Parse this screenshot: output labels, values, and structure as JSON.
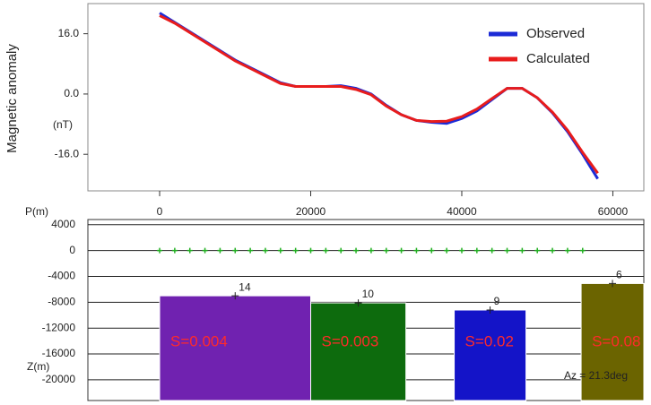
{
  "chart_data": [
    {
      "type": "line",
      "ylabel": "Magnetic anomaly",
      "unit_label": "(nT)",
      "xlim": [
        -9500,
        64100
      ],
      "xticks": [
        0,
        20000,
        40000,
        60000
      ],
      "ylim": [
        -25.7,
        24
      ],
      "yticks": [
        {
          "value": 16,
          "label": "16.0"
        },
        {
          "value": 0,
          "label": "0.0"
        },
        {
          "value": -16,
          "label": "-16.0"
        }
      ],
      "legend": "upper right",
      "x": [
        0,
        2000,
        4000,
        6000,
        8000,
        10000,
        12000,
        14000,
        16000,
        18000,
        20000,
        22000,
        24000,
        26000,
        28000,
        30000,
        32000,
        34000,
        36000,
        38000,
        40000,
        42000,
        44000,
        46000,
        48000,
        50000,
        52000,
        54000,
        56000,
        58000
      ],
      "series": [
        {
          "name": "Observed",
          "color": "#1c2bd6",
          "values": [
            21.5,
            19,
            16.5,
            14,
            11.5,
            9,
            7,
            5,
            3,
            2,
            2,
            2,
            2.2,
            1.5,
            0,
            -3,
            -5.5,
            -7,
            -7.5,
            -7.8,
            -6.5,
            -4.5,
            -1.5,
            1.5,
            1.5,
            -1,
            -5,
            -10,
            -16,
            -22.5
          ]
        },
        {
          "name": "Calculated",
          "color": "#e81c1c",
          "values": [
            20.8,
            18.8,
            16.3,
            13.8,
            11.3,
            8.8,
            6.8,
            4.8,
            2.8,
            2,
            2,
            2,
            2,
            1.2,
            -0.2,
            -3.2,
            -5.5,
            -7,
            -7.3,
            -7.2,
            -6,
            -4,
            -1.2,
            1.5,
            1.5,
            -1,
            -4.8,
            -9.6,
            -15.5,
            -21
          ]
        }
      ]
    },
    {
      "type": "section",
      "xlabel": "P(m)",
      "ylabel": "Z(m)",
      "ylim": [
        -23200,
        4800
      ],
      "yticks": [
        4000,
        0,
        -4000,
        -8000,
        -12000,
        -16000,
        -20000
      ],
      "stations": {
        "color": "#22b022",
        "x": [
          0,
          2000,
          4000,
          6000,
          8000,
          10000,
          12000,
          14000,
          16000,
          18000,
          20000,
          22000,
          24000,
          26000,
          28000,
          30000,
          32000,
          34000,
          36000,
          38000,
          40000,
          42000,
          44000,
          46000,
          48000,
          50000,
          52000,
          54000,
          56000
        ]
      },
      "blocks": [
        {
          "label": "14",
          "x0": 0,
          "x1": 20000,
          "top": -7000,
          "color": "#7022b0",
          "s_label": "S=0.004"
        },
        {
          "label": "10",
          "x0": 20000,
          "x1": 32600,
          "top": -8100,
          "color": "#0d6b0d",
          "s_label": "S=0.003"
        },
        {
          "label": "9",
          "x0": 39000,
          "x1": 48500,
          "top": -9200,
          "color": "#1414c8",
          "s_label": "S=0.02"
        },
        {
          "label": "6",
          "x0": 55800,
          "x1": 64100,
          "top": -5100,
          "color": "#6b6400",
          "s_label": "S=0.08"
        }
      ],
      "annotation": "Az = 21.3deg"
    }
  ]
}
